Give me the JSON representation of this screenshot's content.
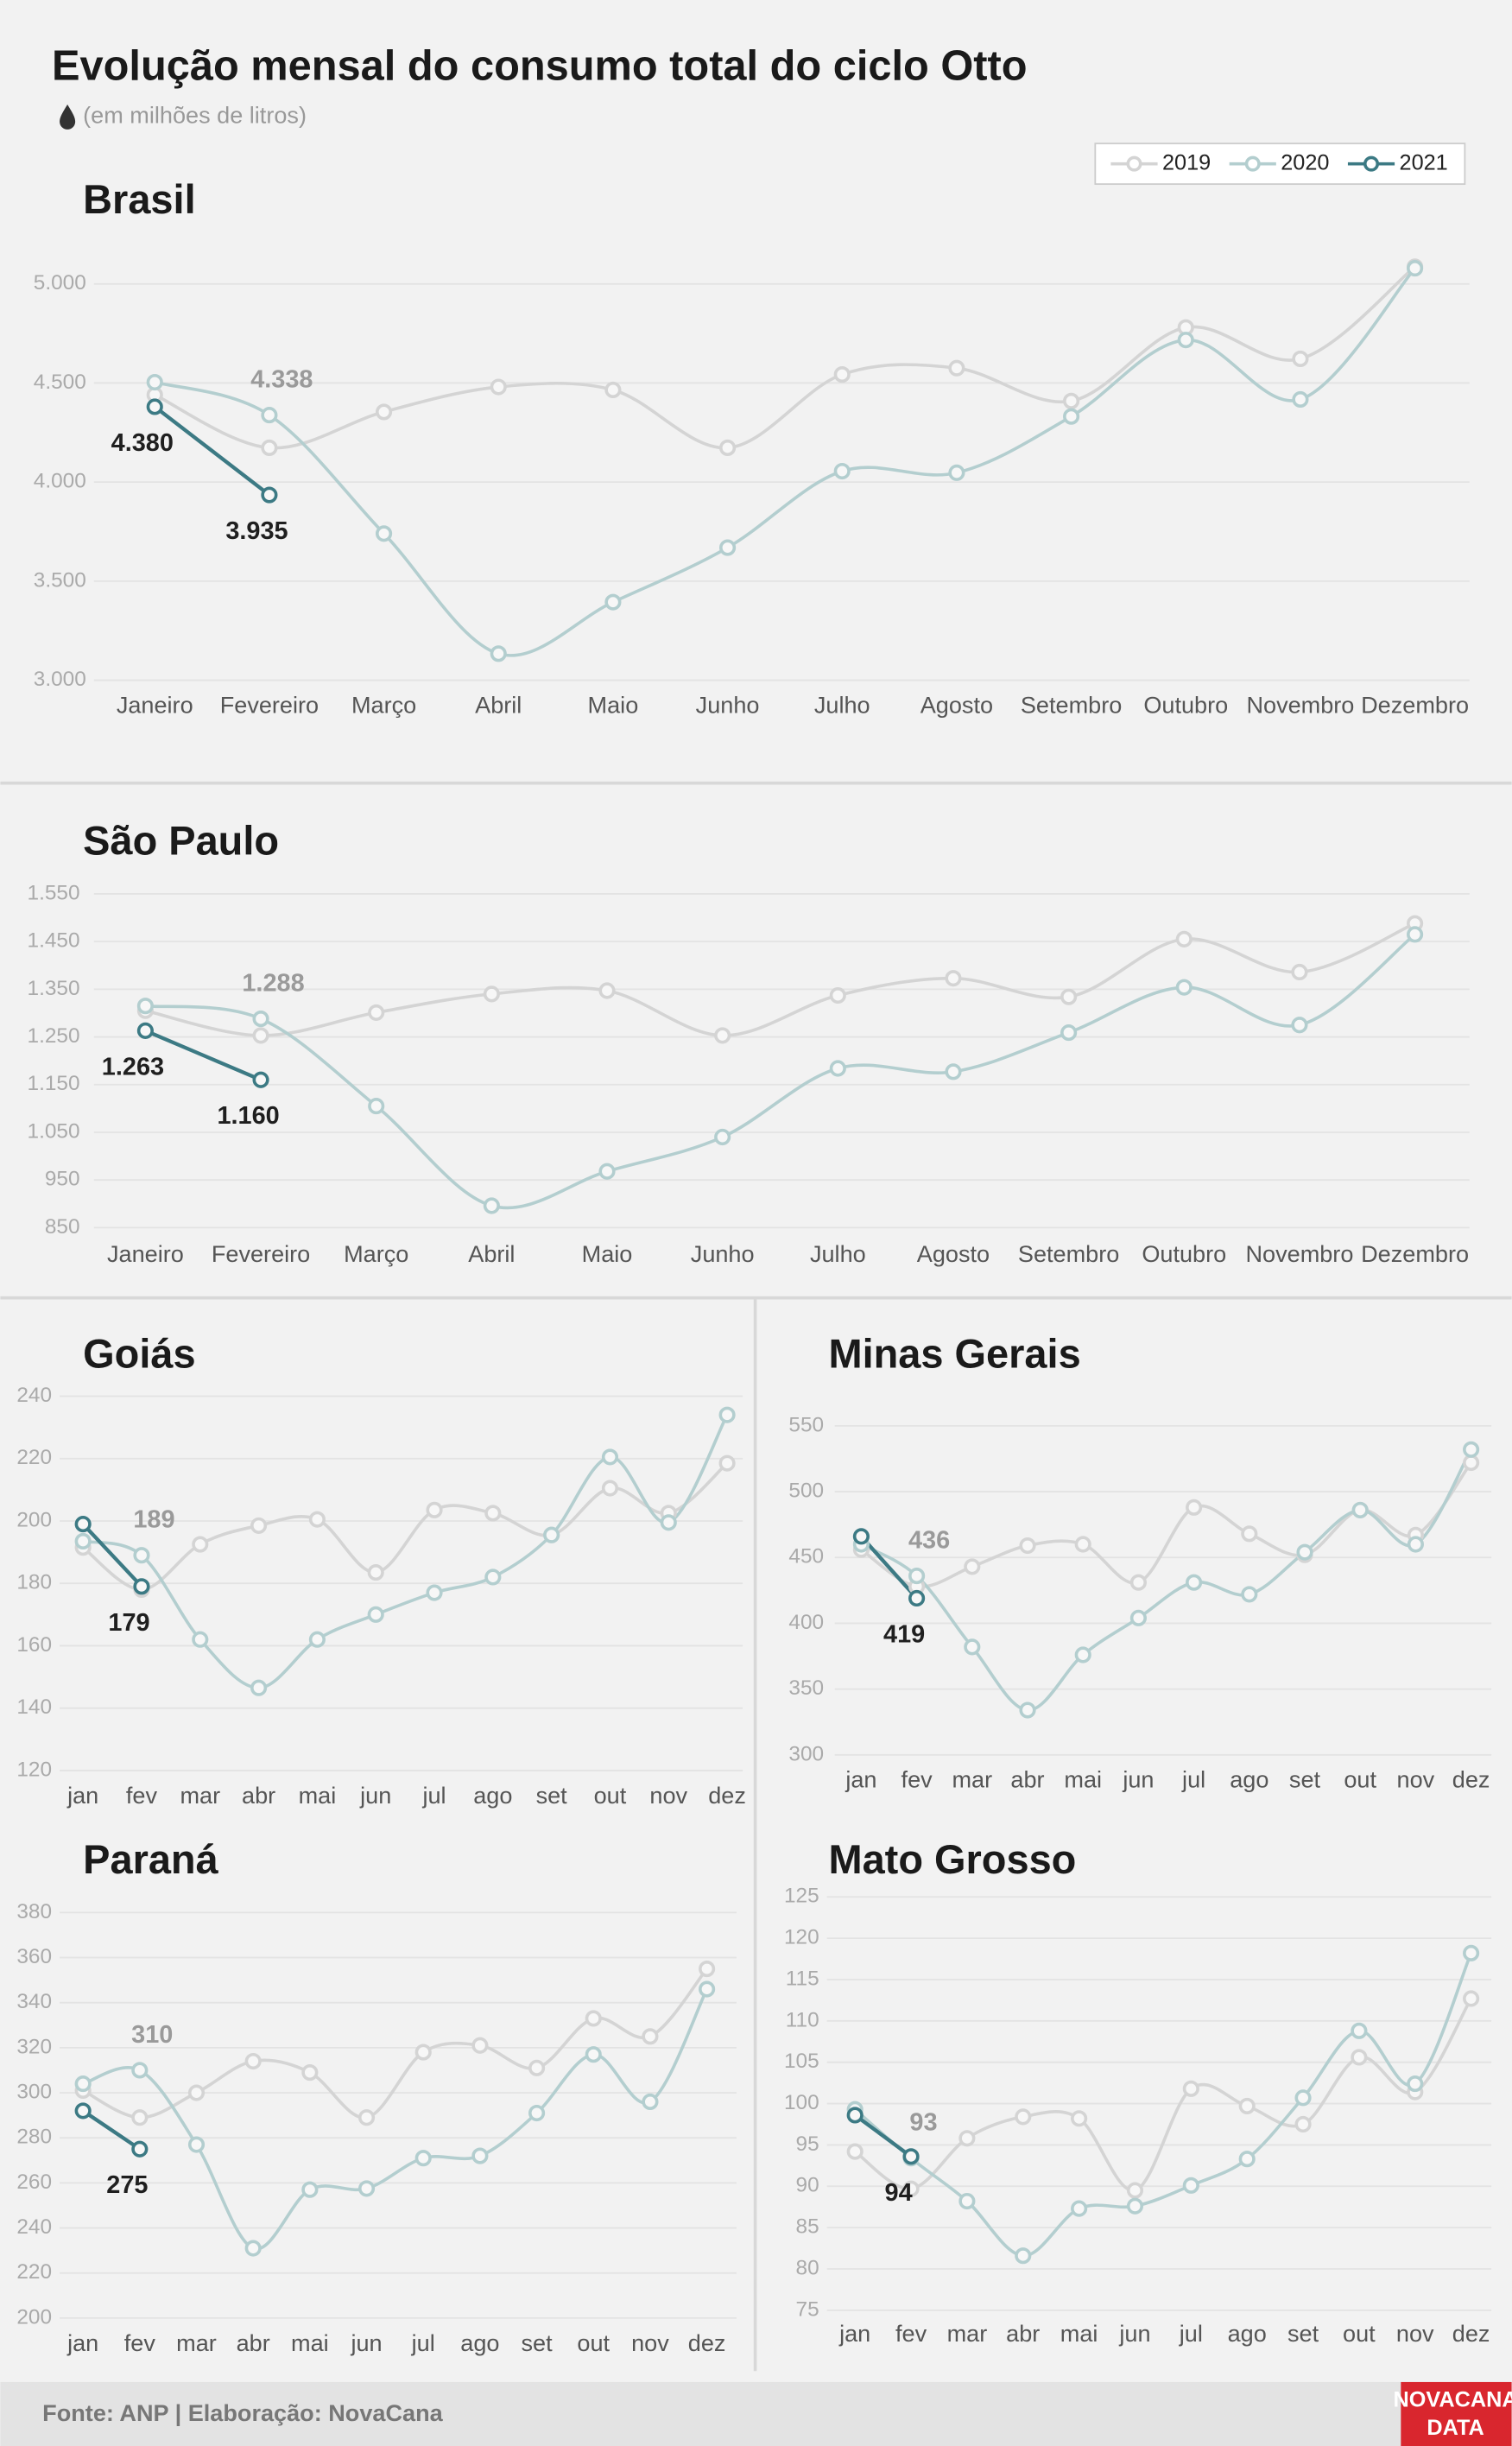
{
  "title": "Evolução mensal do consumo total do ciclo Otto",
  "subtitle": "(em milhões de litros)",
  "source": "Fonte: ANP | Elaboração: NovaCana",
  "logo": [
    "NOVACANA",
    "DATA"
  ],
  "chart_data": [
    {
      "type": "line",
      "title": "Brasil",
      "categories": [
        "Janeiro",
        "Fevereiro",
        "Março",
        "Abril",
        "Maio",
        "Junho",
        "Julho",
        "Agosto",
        "Setembro",
        "Outubro",
        "Novembro",
        "Dezembro"
      ],
      "ylim": [
        2950,
        5200
      ],
      "yticks": [
        {
          "value": 3000,
          "label": "3.000"
        },
        {
          "value": 3500,
          "label": "3.500"
        },
        {
          "value": 4000,
          "label": "4.000"
        },
        {
          "value": 4500,
          "label": "4.500"
        },
        {
          "value": 5000,
          "label": "5.000"
        }
      ],
      "grid": true,
      "legend": "upper right",
      "series": [
        {
          "name": "2019",
          "color": "#d4d4d4",
          "values": [
            4440,
            4173,
            4354,
            4480,
            4465,
            4173,
            4543,
            4575,
            4409,
            4780,
            4622,
            5087
          ]
        },
        {
          "name": "2020",
          "color": "#b3cecf",
          "values": [
            4504,
            4338,
            3740,
            3134,
            3394,
            3669,
            4055,
            4047,
            4331,
            4717,
            4417,
            5079
          ],
          "value_labels": [
            null,
            "4.338",
            null,
            null,
            null,
            null,
            null,
            null,
            null,
            null,
            null,
            null
          ]
        },
        {
          "name": "2021",
          "color": "#3c7a84",
          "values": [
            4380,
            3935,
            null,
            null,
            null,
            null,
            null,
            null,
            null,
            null,
            null,
            null
          ],
          "value_labels": [
            "4.380",
            "3.935",
            null,
            null,
            null,
            null,
            null,
            null,
            null,
            null,
            null,
            null
          ]
        }
      ]
    },
    {
      "type": "line",
      "title": "São Paulo",
      "categories": [
        "Janeiro",
        "Fevereiro",
        "Março",
        "Abril",
        "Maio",
        "Junho",
        "Julho",
        "Agosto",
        "Setembro",
        "Outubro",
        "Novembro",
        "Dezembro"
      ],
      "ylim": [
        830,
        1570
      ],
      "yticks": [
        850,
        950,
        {
          "value": 1050,
          "label": "1.050"
        },
        {
          "value": 1150,
          "label": "1.150"
        },
        {
          "value": 1250,
          "label": "1.250"
        },
        {
          "value": 1350,
          "label": "1.350"
        },
        {
          "value": 1450,
          "label": "1.450"
        },
        {
          "value": 1550,
          "label": "1.550"
        }
      ],
      "grid": true,
      "series": [
        {
          "name": "2019",
          "color": "#d4d4d4",
          "values": [
            1305,
            1253,
            1301,
            1340,
            1347,
            1253,
            1337,
            1373,
            1334,
            1455,
            1386,
            1488
          ]
        },
        {
          "name": "2020",
          "color": "#b3cecf",
          "values": [
            1315,
            1288,
            1105,
            896,
            968,
            1040,
            1184,
            1177,
            1259,
            1354,
            1275,
            1465
          ],
          "value_labels": [
            null,
            "1.288",
            null,
            null,
            null,
            null,
            null,
            null,
            null,
            null,
            null,
            null
          ]
        },
        {
          "name": "2021",
          "color": "#3c7a84",
          "values": [
            1263,
            1160,
            null,
            null,
            null,
            null,
            null,
            null,
            null,
            null,
            null,
            null
          ],
          "value_labels": [
            "1.263",
            "1.160",
            null,
            null,
            null,
            null,
            null,
            null,
            null,
            null,
            null,
            null
          ]
        }
      ]
    },
    {
      "type": "line",
      "title": "Goiás",
      "categories": [
        "jan",
        "fev",
        "mar",
        "abr",
        "mai",
        "jun",
        "jul",
        "ago",
        "set",
        "out",
        "nov",
        "dez"
      ],
      "ylim": [
        120,
        245
      ],
      "yticks": [
        120,
        140,
        160,
        180,
        200,
        220,
        240
      ],
      "grid": true,
      "series": [
        {
          "name": "2019",
          "color": "#d4d4d4",
          "values": [
            191.5,
            178,
            192.5,
            198.5,
            200.5,
            183.5,
            203.5,
            202.5,
            195.5,
            210.5,
            202.5,
            218.5
          ]
        },
        {
          "name": "2020",
          "color": "#b3cecf",
          "values": [
            193.5,
            189,
            162,
            146.5,
            162,
            170,
            177,
            182,
            195.5,
            220.5,
            199.5,
            234
          ],
          "value_labels": [
            null,
            "189",
            null,
            null,
            null,
            null,
            null,
            null,
            null,
            null,
            null,
            null
          ]
        },
        {
          "name": "2021",
          "color": "#3c7a84",
          "values": [
            199,
            179,
            null,
            null,
            null,
            null,
            null,
            null,
            null,
            null,
            null,
            null
          ],
          "value_labels": [
            null,
            "179",
            null,
            null,
            null,
            null,
            null,
            null,
            null,
            null,
            null,
            null
          ]
        }
      ]
    },
    {
      "type": "line",
      "title": "Minas Gerais",
      "categories": [
        "jan",
        "fev",
        "mar",
        "abr",
        "mai",
        "jun",
        "jul",
        "ago",
        "set",
        "out",
        "nov",
        "dez"
      ],
      "ylim": [
        290,
        560
      ],
      "yticks": [
        300,
        350,
        400,
        450,
        500,
        550
      ],
      "grid": true,
      "series": [
        {
          "name": "2019",
          "color": "#d4d4d4",
          "values": [
            456,
            428,
            443,
            459,
            460,
            431,
            488,
            468,
            452,
            486,
            467,
            522
          ]
        },
        {
          "name": "2020",
          "color": "#b3cecf",
          "values": [
            460,
            436,
            382,
            334,
            376,
            404,
            431,
            422,
            454,
            486,
            460,
            532
          ],
          "value_labels": [
            null,
            "436",
            null,
            null,
            null,
            null,
            null,
            null,
            null,
            null,
            null,
            null
          ]
        },
        {
          "name": "2021",
          "color": "#3c7a84",
          "values": [
            466,
            419,
            null,
            null,
            null,
            null,
            null,
            null,
            null,
            null,
            null,
            null
          ],
          "value_labels": [
            null,
            "419",
            null,
            null,
            null,
            null,
            null,
            null,
            null,
            null,
            null,
            null
          ]
        }
      ]
    },
    {
      "type": "line",
      "title": "Paraná",
      "categories": [
        "jan",
        "fev",
        "mar",
        "abr",
        "mai",
        "jun",
        "jul",
        "ago",
        "set",
        "out",
        "nov",
        "dez"
      ],
      "ylim": [
        200,
        385
      ],
      "yticks": [
        200,
        220,
        240,
        260,
        280,
        300,
        320,
        340,
        360,
        380
      ],
      "grid": true,
      "series": [
        {
          "name": "2019",
          "color": "#d4d4d4",
          "values": [
            301,
            289,
            300,
            314,
            309,
            289,
            318,
            321,
            311,
            333,
            325,
            355
          ]
        },
        {
          "name": "2020",
          "color": "#b3cecf",
          "values": [
            304,
            310,
            277,
            231,
            257,
            257.5,
            271,
            272,
            291,
            317,
            296,
            346
          ],
          "value_labels": [
            null,
            "310",
            null,
            null,
            null,
            null,
            null,
            null,
            null,
            null,
            null,
            null
          ]
        },
        {
          "name": "2021",
          "color": "#3c7a84",
          "values": [
            292,
            275,
            null,
            null,
            null,
            null,
            null,
            null,
            null,
            null,
            null,
            null
          ],
          "value_labels": [
            null,
            "275",
            null,
            null,
            null,
            null,
            null,
            null,
            null,
            null,
            null,
            null
          ]
        }
      ]
    },
    {
      "type": "line",
      "title": "Mato Grosso",
      "categories": [
        "jan",
        "fev",
        "mar",
        "abr",
        "mai",
        "jun",
        "jul",
        "ago",
        "set",
        "out",
        "nov",
        "dez"
      ],
      "ylim": [
        75,
        126
      ],
      "yticks": [
        75,
        80,
        85,
        90,
        95,
        100,
        105,
        110,
        115,
        120,
        125
      ],
      "grid": true,
      "series": [
        {
          "name": "2019",
          "color": "#d4d4d4",
          "values": [
            94.2,
            89.7,
            95.8,
            98.4,
            98.2,
            89.5,
            101.8,
            99.7,
            97.5,
            105.6,
            101.4,
            112.7
          ]
        },
        {
          "name": "2020",
          "color": "#b3cecf",
          "values": [
            99.3,
            93.4,
            88.2,
            81.6,
            87.3,
            87.6,
            90.1,
            93.3,
            100.7,
            108.8,
            102.4,
            118.2
          ],
          "value_labels": [
            null,
            "93",
            null,
            null,
            null,
            null,
            null,
            null,
            null,
            null,
            null,
            null
          ]
        },
        {
          "name": "2021",
          "color": "#3c7a84",
          "values": [
            98.6,
            93.6,
            null,
            null,
            null,
            null,
            null,
            null,
            null,
            null,
            null,
            null
          ],
          "value_labels": [
            null,
            "94",
            null,
            null,
            null,
            null,
            null,
            null,
            null,
            null,
            null,
            null
          ]
        }
      ]
    }
  ]
}
